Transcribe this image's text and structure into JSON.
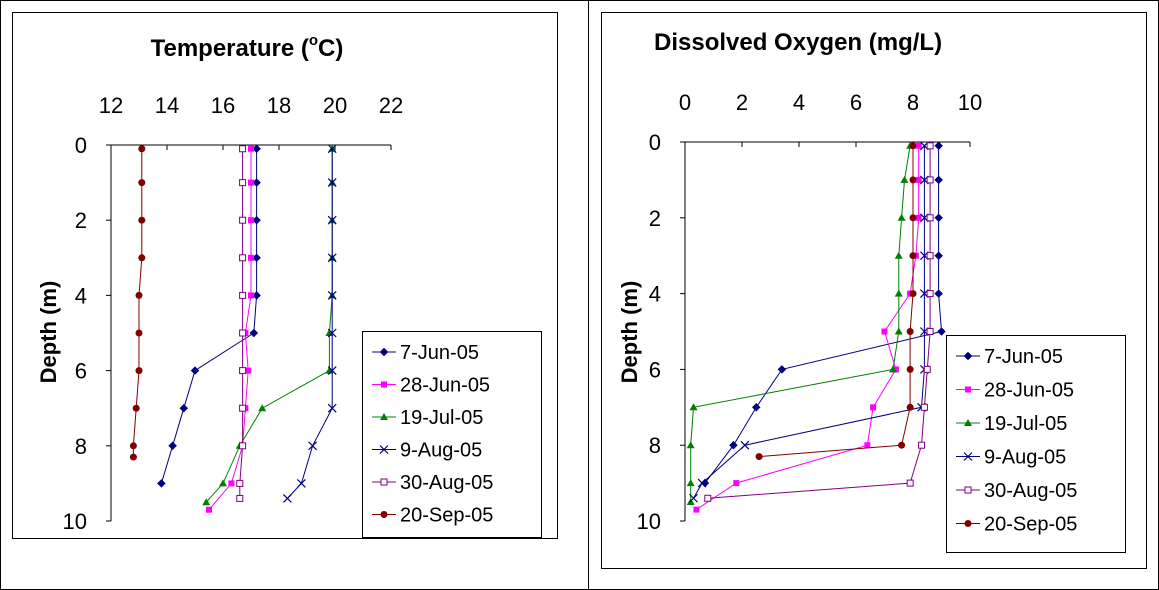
{
  "chart_data": [
    {
      "type": "line",
      "title": "Temperature (",
      "title_sup": "o",
      "title_tail": "C)",
      "xlabel": "",
      "ylabel": "Depth (m)",
      "xlim": [
        12,
        22
      ],
      "ylim": [
        0,
        10
      ],
      "y_reversed": true,
      "x_axis_position": "top",
      "xticks": [
        "12",
        "14",
        "16",
        "18",
        "20",
        "22"
      ],
      "yticks": [
        "0",
        "2",
        "4",
        "6",
        "8",
        "10"
      ],
      "grid": false,
      "legend_position": "bottom-right",
      "series": [
        {
          "name": "7-Jun-05",
          "color": "#000080",
          "marker": "diamond",
          "points": [
            [
              17.2,
              0.1
            ],
            [
              17.2,
              1
            ],
            [
              17.2,
              2
            ],
            [
              17.2,
              3
            ],
            [
              17.2,
              4
            ],
            [
              17.1,
              5
            ],
            [
              15.0,
              6
            ],
            [
              14.6,
              7
            ],
            [
              14.2,
              8
            ],
            [
              13.8,
              9
            ]
          ]
        },
        {
          "name": "28-Jun-05",
          "color": "#ff00ff",
          "marker": "square",
          "points": [
            [
              17.0,
              0.1
            ],
            [
              17.0,
              1
            ],
            [
              17.0,
              2
            ],
            [
              17.0,
              3
            ],
            [
              17.0,
              4
            ],
            [
              16.8,
              5
            ],
            [
              16.9,
              6
            ],
            [
              16.8,
              7
            ],
            [
              16.7,
              8
            ],
            [
              16.3,
              9
            ],
            [
              15.5,
              9.7
            ]
          ]
        },
        {
          "name": "19-Jul-05",
          "color": "#008000",
          "marker": "triangle",
          "points": [
            [
              19.9,
              0.1
            ],
            [
              19.9,
              1
            ],
            [
              19.9,
              2
            ],
            [
              19.9,
              3
            ],
            [
              19.9,
              4
            ],
            [
              19.8,
              5
            ],
            [
              19.8,
              6
            ],
            [
              17.4,
              7
            ],
            [
              16.6,
              8
            ],
            [
              16.0,
              9
            ],
            [
              15.4,
              9.5
            ]
          ]
        },
        {
          "name": "9-Aug-05",
          "color": "#000080",
          "marker": "x",
          "points": [
            [
              19.9,
              0.1
            ],
            [
              19.9,
              1
            ],
            [
              19.9,
              2
            ],
            [
              19.9,
              3
            ],
            [
              19.9,
              4
            ],
            [
              19.9,
              5
            ],
            [
              19.9,
              6
            ],
            [
              19.9,
              7
            ],
            [
              19.2,
              8
            ],
            [
              18.8,
              9
            ],
            [
              18.3,
              9.4
            ]
          ]
        },
        {
          "name": "30-Aug-05",
          "color": "#800080",
          "marker": "square-open",
          "points": [
            [
              16.7,
              0.1
            ],
            [
              16.7,
              1
            ],
            [
              16.7,
              2
            ],
            [
              16.7,
              3
            ],
            [
              16.7,
              4
            ],
            [
              16.7,
              5
            ],
            [
              16.7,
              6
            ],
            [
              16.7,
              7
            ],
            [
              16.7,
              8
            ],
            [
              16.6,
              9
            ],
            [
              16.6,
              9.4
            ]
          ]
        },
        {
          "name": "20-Sep-05",
          "color": "#800000",
          "marker": "circle",
          "points": [
            [
              13.1,
              0.1
            ],
            [
              13.1,
              1
            ],
            [
              13.1,
              2
            ],
            [
              13.1,
              3
            ],
            [
              13.0,
              4
            ],
            [
              13.0,
              5
            ],
            [
              13.0,
              6
            ],
            [
              12.9,
              7
            ],
            [
              12.8,
              8
            ],
            [
              12.8,
              8.3
            ]
          ]
        }
      ]
    },
    {
      "type": "line",
      "title": "Dissolved Oxygen (mg/L)",
      "xlabel": "",
      "ylabel": "Depth (m)",
      "xlim": [
        0,
        10
      ],
      "ylim": [
        0,
        10
      ],
      "y_reversed": true,
      "x_axis_position": "top",
      "xticks": [
        "0",
        "2",
        "4",
        "6",
        "8",
        "10"
      ],
      "yticks": [
        "0",
        "2",
        "4",
        "6",
        "8",
        "10"
      ],
      "grid": false,
      "legend_position": "bottom-right",
      "series": [
        {
          "name": "7-Jun-05",
          "color": "#000080",
          "marker": "diamond",
          "points": [
            [
              8.9,
              0.1
            ],
            [
              8.9,
              1
            ],
            [
              8.9,
              2
            ],
            [
              8.9,
              3
            ],
            [
              8.9,
              4
            ],
            [
              9.0,
              5
            ],
            [
              3.4,
              6
            ],
            [
              2.5,
              7
            ],
            [
              1.7,
              8
            ],
            [
              0.7,
              9
            ]
          ]
        },
        {
          "name": "28-Jun-05",
          "color": "#ff00ff",
          "marker": "square",
          "points": [
            [
              8.2,
              0.1
            ],
            [
              8.2,
              1
            ],
            [
              8.2,
              2
            ],
            [
              8.1,
              3
            ],
            [
              7.9,
              4
            ],
            [
              7.0,
              5
            ],
            [
              7.4,
              6
            ],
            [
              6.6,
              7
            ],
            [
              6.4,
              8
            ],
            [
              1.8,
              9
            ],
            [
              0.4,
              9.7
            ]
          ]
        },
        {
          "name": "19-Jul-05",
          "color": "#008000",
          "marker": "triangle",
          "points": [
            [
              7.9,
              0.1
            ],
            [
              7.7,
              1
            ],
            [
              7.6,
              2
            ],
            [
              7.5,
              3
            ],
            [
              7.5,
              4
            ],
            [
              7.5,
              5
            ],
            [
              7.3,
              6
            ],
            [
              0.3,
              7
            ],
            [
              0.2,
              8
            ],
            [
              0.2,
              9
            ],
            [
              0.2,
              9.5
            ]
          ]
        },
        {
          "name": "9-Aug-05",
          "color": "#000080",
          "marker": "x",
          "points": [
            [
              8.4,
              0.1
            ],
            [
              8.4,
              1
            ],
            [
              8.4,
              2
            ],
            [
              8.4,
              3
            ],
            [
              8.4,
              4
            ],
            [
              8.4,
              5
            ],
            [
              8.4,
              6
            ],
            [
              8.3,
              7
            ],
            [
              2.1,
              8
            ],
            [
              0.6,
              9
            ],
            [
              0.3,
              9.4
            ]
          ]
        },
        {
          "name": "30-Aug-05",
          "color": "#800080",
          "marker": "square-open",
          "points": [
            [
              8.6,
              0.1
            ],
            [
              8.6,
              1
            ],
            [
              8.6,
              2
            ],
            [
              8.6,
              3
            ],
            [
              8.6,
              4
            ],
            [
              8.6,
              5
            ],
            [
              8.5,
              6
            ],
            [
              8.4,
              7
            ],
            [
              8.3,
              8
            ],
            [
              7.9,
              9
            ],
            [
              0.8,
              9.4
            ]
          ]
        },
        {
          "name": "20-Sep-05",
          "color": "#800000",
          "marker": "circle",
          "points": [
            [
              8.0,
              0.1
            ],
            [
              8.0,
              1
            ],
            [
              8.0,
              2
            ],
            [
              8.0,
              3
            ],
            [
              8.0,
              4
            ],
            [
              7.9,
              5
            ],
            [
              7.9,
              6
            ],
            [
              7.9,
              7
            ],
            [
              7.6,
              8
            ],
            [
              2.6,
              8.3
            ]
          ]
        }
      ]
    }
  ]
}
